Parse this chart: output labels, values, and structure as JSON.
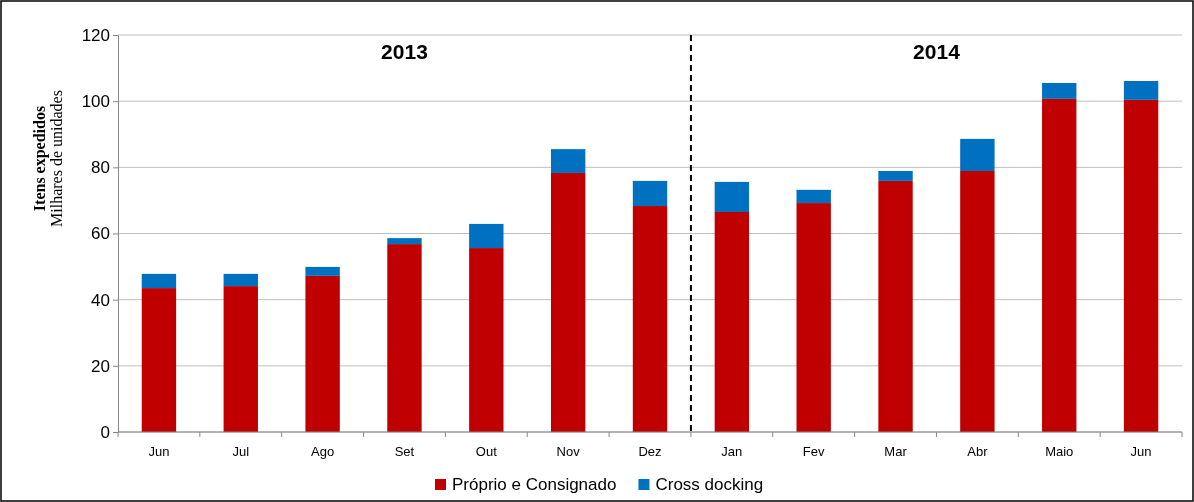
{
  "chart_data": {
    "type": "bar",
    "stacked": true,
    "ylabel": "Itens expedidos\nMilhares de unidades",
    "categories": [
      "Jun",
      "Jul",
      "Ago",
      "Set",
      "Out",
      "Nov",
      "Dez",
      "Jan",
      "Fev",
      "Mar",
      "Abr",
      "Maio",
      "Jun"
    ],
    "series": [
      {
        "name": "Próprio e Consignado",
        "color": "#c00000",
        "values": [
          43.5,
          44.1,
          47.2,
          56.8,
          55.6,
          78.3,
          68.3,
          66.5,
          69.2,
          75.9,
          78.9,
          100.7,
          100.4
        ]
      },
      {
        "name": "Cross docking",
        "color": "#0070c0",
        "values": [
          4.3,
          3.7,
          2.7,
          1.8,
          7.3,
          7.2,
          7.6,
          9.1,
          4.0,
          3.0,
          9.7,
          4.8,
          5.7
        ]
      }
    ],
    "ylim": [
      0,
      120
    ],
    "yticks": [
      0,
      20,
      40,
      60,
      80,
      100,
      120
    ],
    "grid": "y",
    "legend": "bottom",
    "annotations": [
      "2013",
      "2014"
    ]
  }
}
